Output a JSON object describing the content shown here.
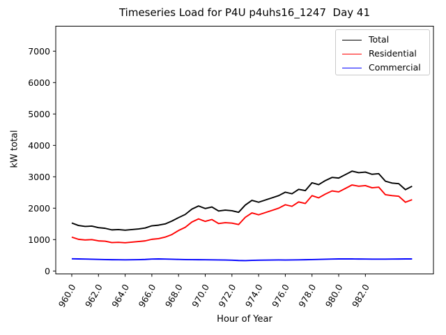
{
  "figure": {
    "title": "Timeseries Load for P4U p4uhs16_1247  Day 41"
  },
  "chart_data": {
    "type": "line",
    "title": "Timeseries Load for P4U p4uhs16_1247  Day 41",
    "xlabel": "Hour of Year",
    "ylabel": "kW total",
    "xlim": [
      958.8,
      987.1
    ],
    "ylim": [
      -93,
      7796
    ],
    "grid": false,
    "legend_position": "upper right",
    "background": "#ffffff",
    "axis_color": "#000000",
    "x_ticks": [
      960,
      962,
      964,
      966,
      968,
      970,
      972,
      974,
      976,
      978,
      980,
      982
    ],
    "x_tick_labels": [
      "960.0",
      "962.0",
      "964.0",
      "966.0",
      "968.0",
      "970.0",
      "972.0",
      "974.0",
      "976.0",
      "978.0",
      "980.0",
      "982.0"
    ],
    "x_tick_rotation": 60,
    "y_ticks": [
      0,
      1000,
      2000,
      3000,
      4000,
      5000,
      6000,
      7000
    ],
    "y_tick_labels": [
      "0",
      "1000",
      "2000",
      "3000",
      "4000",
      "5000",
      "6000",
      "7000"
    ],
    "x": [
      960.0,
      960.5,
      961.0,
      961.5,
      962.0,
      962.5,
      963.0,
      963.5,
      964.0,
      964.5,
      965.0,
      965.5,
      966.0,
      966.5,
      967.0,
      967.5,
      968.0,
      968.5,
      969.0,
      969.5,
      970.0,
      970.5,
      971.0,
      971.5,
      972.0,
      972.5,
      973.0,
      973.5,
      974.0,
      974.5,
      975.0,
      975.5,
      976.0,
      976.5,
      977.0,
      977.5,
      978.0,
      978.5,
      979.0,
      979.5,
      980.0,
      980.5,
      981.0,
      981.5,
      982.0,
      982.5,
      983.0,
      983.5,
      984.0,
      984.5,
      985.0,
      985.5
    ],
    "series": [
      {
        "name": "Total",
        "color": "#000000",
        "values": [
          1530,
          1450,
          1420,
          1430,
          1380,
          1360,
          1310,
          1320,
          1300,
          1320,
          1340,
          1370,
          1440,
          1460,
          1500,
          1590,
          1700,
          1800,
          1970,
          2070,
          1990,
          2040,
          1910,
          1940,
          1920,
          1870,
          2100,
          2250,
          2190,
          2260,
          2330,
          2400,
          2510,
          2460,
          2600,
          2560,
          2810,
          2750,
          2880,
          2980,
          2960,
          3070,
          3180,
          3130,
          3150,
          3080,
          3100,
          2860,
          2800,
          2780,
          2590,
          2700
        ]
      },
      {
        "name": "Residential",
        "color": "#ff0000",
        "values": [
          1080,
          1010,
          990,
          1000,
          960,
          950,
          905,
          915,
          900,
          920,
          940,
          960,
          1010,
          1030,
          1080,
          1160,
          1290,
          1390,
          1560,
          1660,
          1580,
          1640,
          1510,
          1540,
          1525,
          1480,
          1710,
          1850,
          1790,
          1860,
          1930,
          2000,
          2110,
          2060,
          2200,
          2150,
          2400,
          2330,
          2450,
          2550,
          2520,
          2630,
          2740,
          2700,
          2720,
          2650,
          2670,
          2430,
          2400,
          2380,
          2190,
          2270
        ]
      },
      {
        "name": "Commercial",
        "color": "#0000ff",
        "values": [
          390,
          385,
          380,
          375,
          370,
          365,
          360,
          358,
          355,
          358,
          362,
          368,
          380,
          385,
          380,
          375,
          370,
          365,
          362,
          360,
          358,
          355,
          352,
          350,
          345,
          335,
          330,
          340,
          345,
          348,
          350,
          352,
          350,
          352,
          355,
          360,
          365,
          370,
          375,
          380,
          385,
          385,
          385,
          382,
          380,
          378,
          378,
          378,
          380,
          382,
          385,
          385
        ]
      }
    ]
  }
}
